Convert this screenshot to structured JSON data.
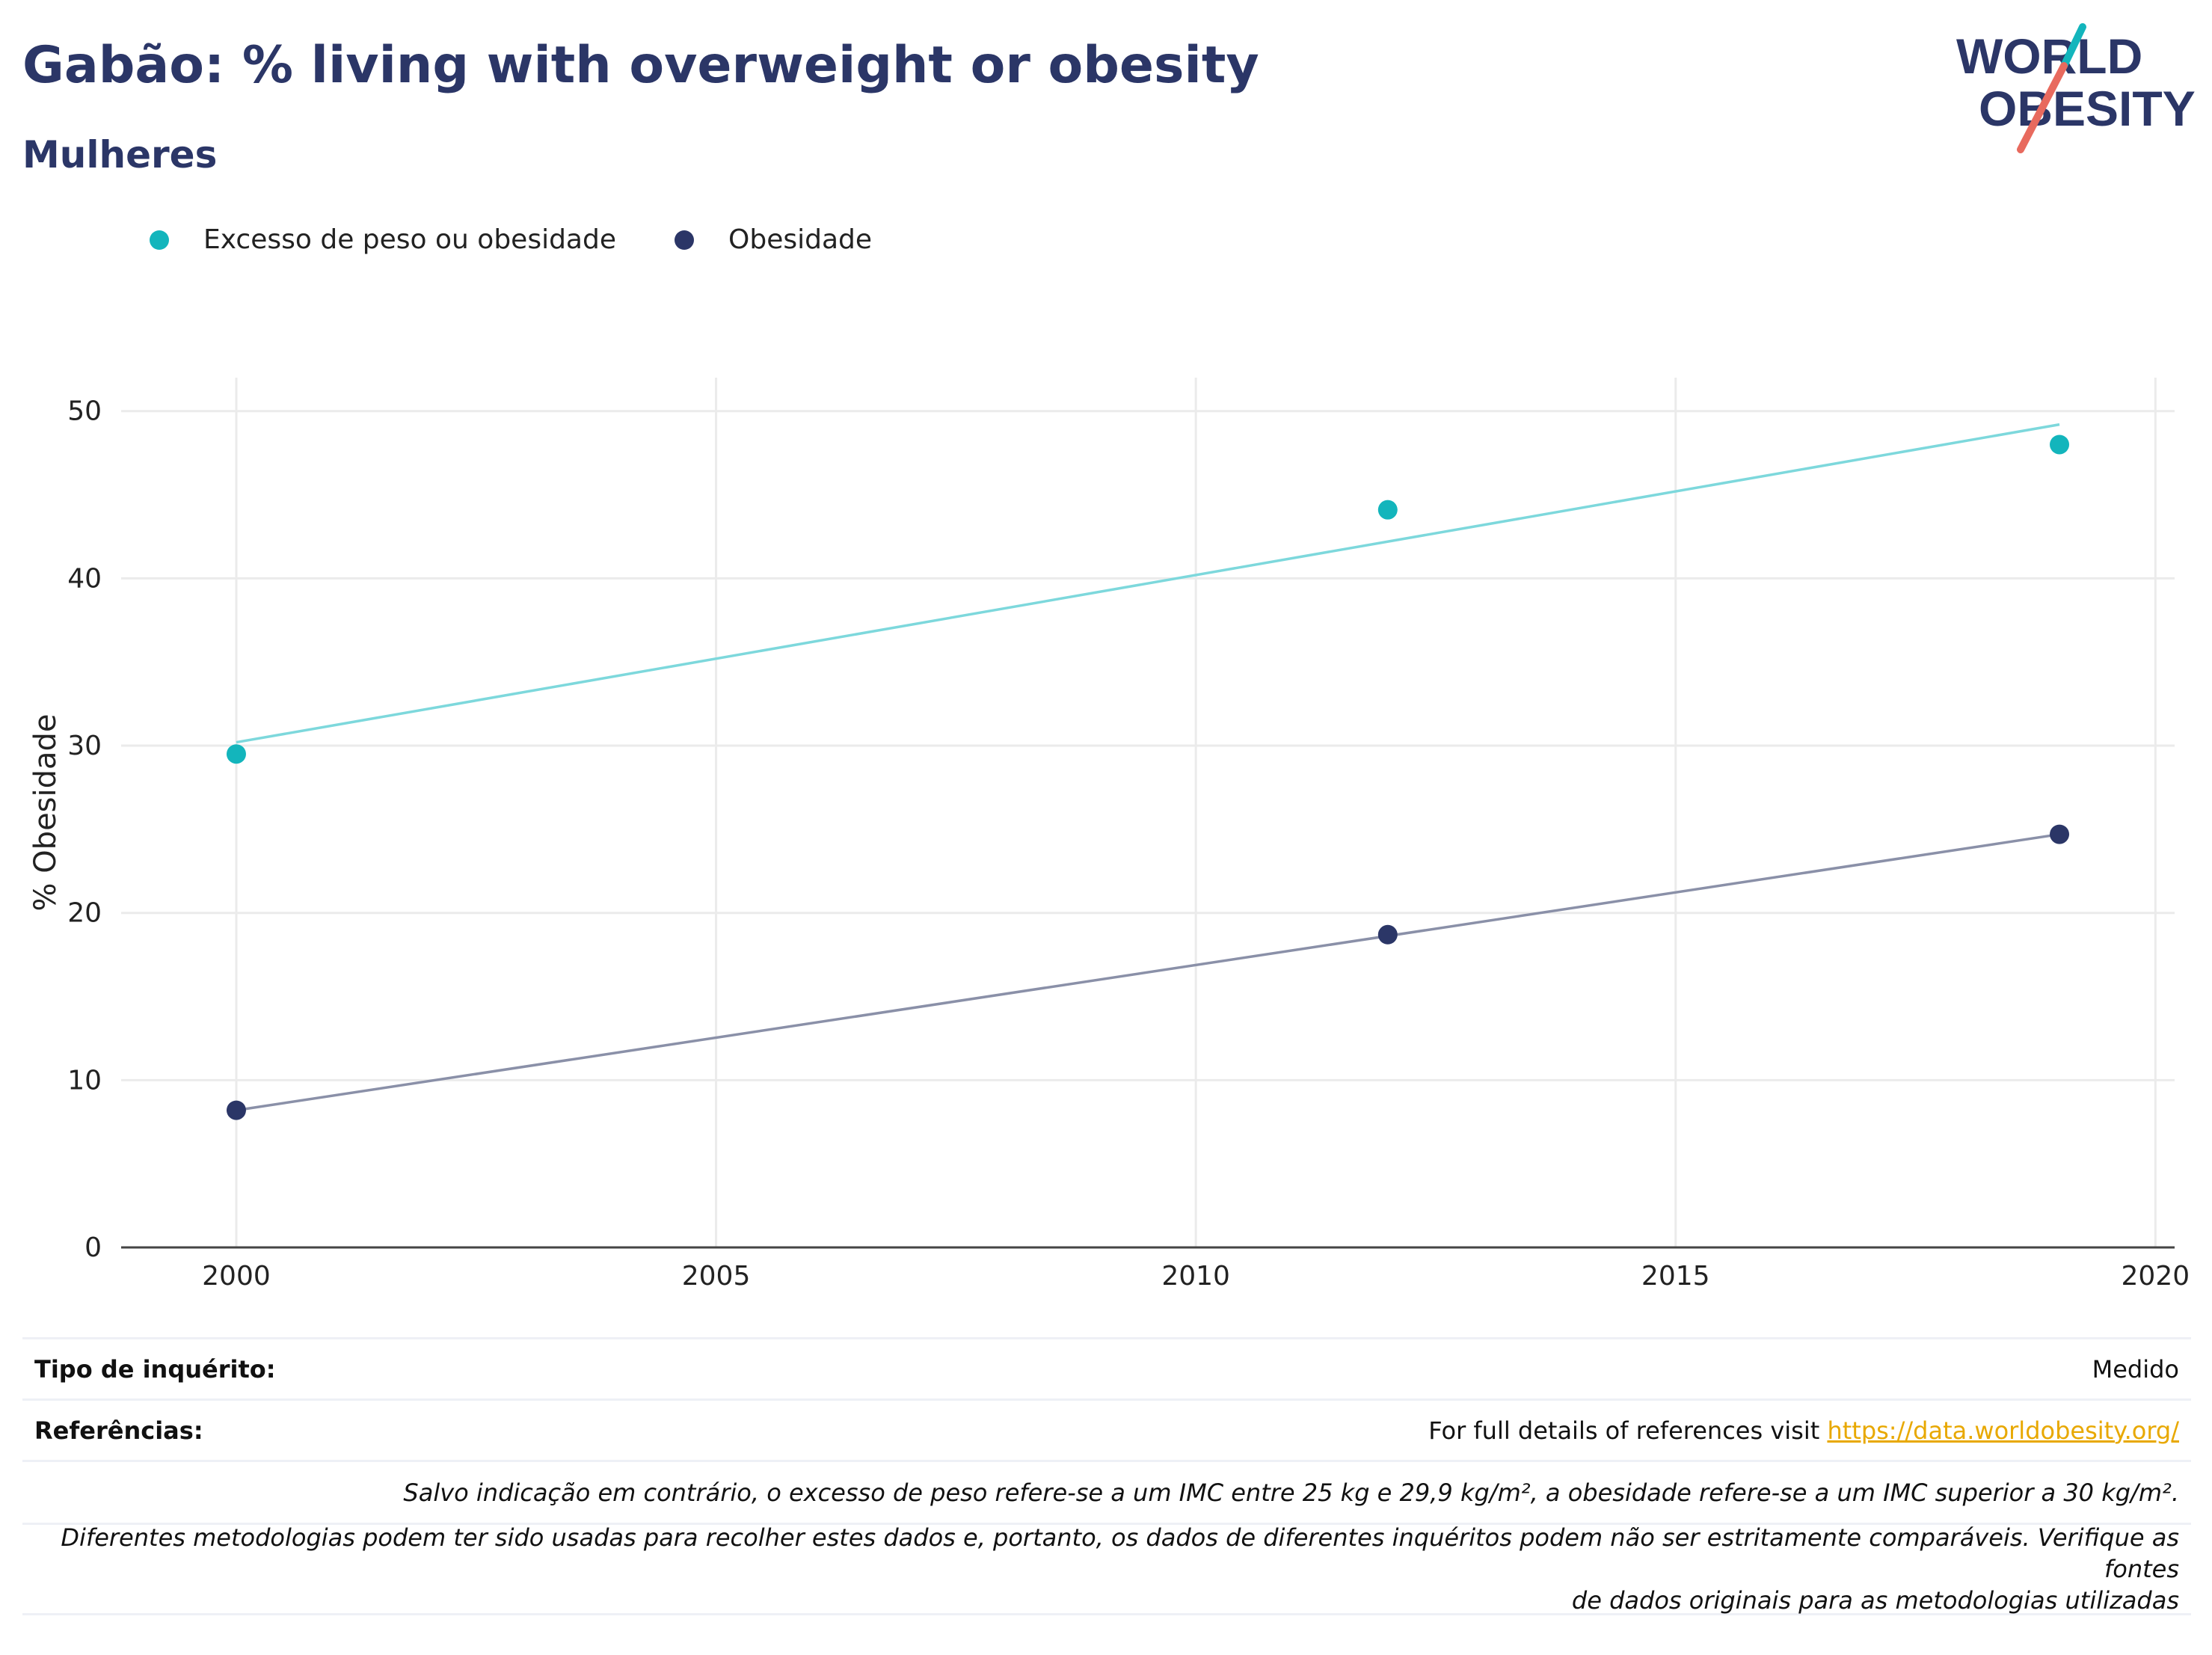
{
  "header": {
    "title": "Gabão: % living with overweight or obesity",
    "subtitle": "Mulheres",
    "logo_line1": "WORLD",
    "logo_line2": "OBESITY"
  },
  "legend": [
    {
      "label": "Excesso de peso ou obesidade",
      "color": "#13b5bc"
    },
    {
      "label": "Obesidade",
      "color": "#2b3667"
    }
  ],
  "chart_data": {
    "type": "scatter",
    "ylabel": "% Obesidade",
    "xlabel": "",
    "xlim": [
      1998.8,
      2020.2
    ],
    "ylim": [
      0,
      52
    ],
    "x_ticks": [
      2000,
      2005,
      2010,
      2015,
      2020
    ],
    "y_ticks": [
      0,
      10,
      20,
      30,
      40,
      50
    ],
    "grid": true,
    "legend_position": "top-left",
    "series": [
      {
        "name": "Excesso de peso ou obesidade",
        "color": "#13b5bc",
        "trend_color": "#7dd8dc",
        "points": [
          {
            "x": 2000,
            "y": 29.5
          },
          {
            "x": 2012,
            "y": 44.1
          },
          {
            "x": 2019,
            "y": 48.0
          }
        ],
        "trend": [
          {
            "x": 2000,
            "y": 30.2
          },
          {
            "x": 2019,
            "y": 49.2
          }
        ]
      },
      {
        "name": "Obesidade",
        "color": "#2b3667",
        "trend_color": "#8a90a8",
        "points": [
          {
            "x": 2000,
            "y": 8.2
          },
          {
            "x": 2012,
            "y": 18.7
          },
          {
            "x": 2019,
            "y": 24.7
          }
        ],
        "trend": [
          {
            "x": 2000,
            "y": 8.2
          },
          {
            "x": 2019,
            "y": 24.7
          }
        ]
      }
    ]
  },
  "footer": {
    "survey_label": "Tipo de inquérito:",
    "survey_value": "Medido",
    "refs_label": "Referências:",
    "refs_text": "For full details of references visit ",
    "refs_link": "https://data.worldobesity.org/",
    "note1": "Salvo indicação em contrário, o excesso de peso refere-se a um IMC entre 25 kg e 29,9 kg/m², a obesidade refere-se a um IMC superior a 30 kg/m².",
    "note2_line1": "Diferentes metodologias podem ter sido usadas para recolher estes dados e, portanto, os dados de diferentes inquéritos podem não ser estritamente comparáveis. Verifique as fontes",
    "note2_line2": "de dados originais para as metodologias utilizadas"
  }
}
